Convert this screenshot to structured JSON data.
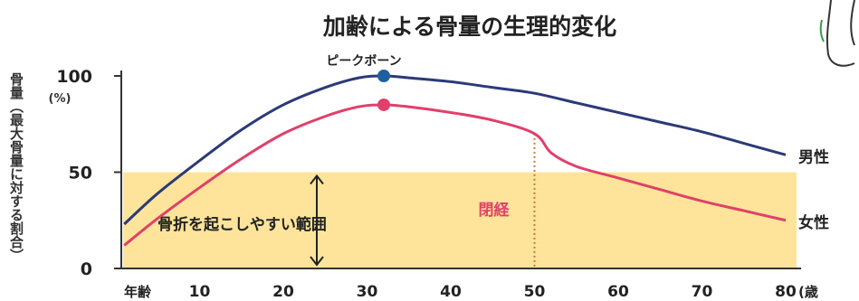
{
  "chart_data": {
    "type": "line",
    "title": "加齢による骨量の生理的変化",
    "ylabel": "骨量（最大骨量に対する割合）",
    "y_unit": "(%)",
    "x_axis_label": "年齢",
    "x_unit": "(歳",
    "xlim": [
      0,
      80
    ],
    "ylim": [
      0,
      100
    ],
    "x_ticks": [
      10,
      20,
      30,
      40,
      50,
      60,
      70,
      80
    ],
    "y_ticks": [
      0,
      50,
      100
    ],
    "x_tick_labels": [
      "10",
      "20",
      "30",
      "40",
      "50",
      "60",
      "70",
      "80"
    ],
    "y_tick_labels": [
      "0",
      "50",
      "100"
    ],
    "series": [
      {
        "name": "男性",
        "color": "#2b3a78",
        "x": [
          1,
          5,
          10,
          15,
          20,
          25,
          29,
          32,
          35,
          40,
          45,
          50,
          55,
          60,
          65,
          70,
          75,
          80
        ],
        "y": [
          23,
          39,
          56,
          72,
          85,
          94,
          99,
          100,
          99,
          97,
          94,
          91,
          86,
          81,
          76,
          71,
          65,
          59
        ]
      },
      {
        "name": "女性",
        "color": "#e0406a",
        "x": [
          1,
          5,
          10,
          15,
          20,
          25,
          29,
          32,
          35,
          40,
          45,
          50,
          52,
          55,
          60,
          65,
          70,
          75,
          80
        ],
        "y": [
          12,
          26,
          42,
          57,
          70,
          79,
          84,
          85,
          84,
          81,
          77,
          70,
          60,
          53,
          47,
          41,
          35,
          30,
          25
        ]
      }
    ],
    "peak_marker": {
      "label": "ピークボーン",
      "x": 32
    },
    "fracture_zone": {
      "label": "骨折を起こしやすい範囲",
      "y_max": 50,
      "color": "#fde49a"
    },
    "menopause": {
      "label": "閉経",
      "x": 50
    }
  }
}
